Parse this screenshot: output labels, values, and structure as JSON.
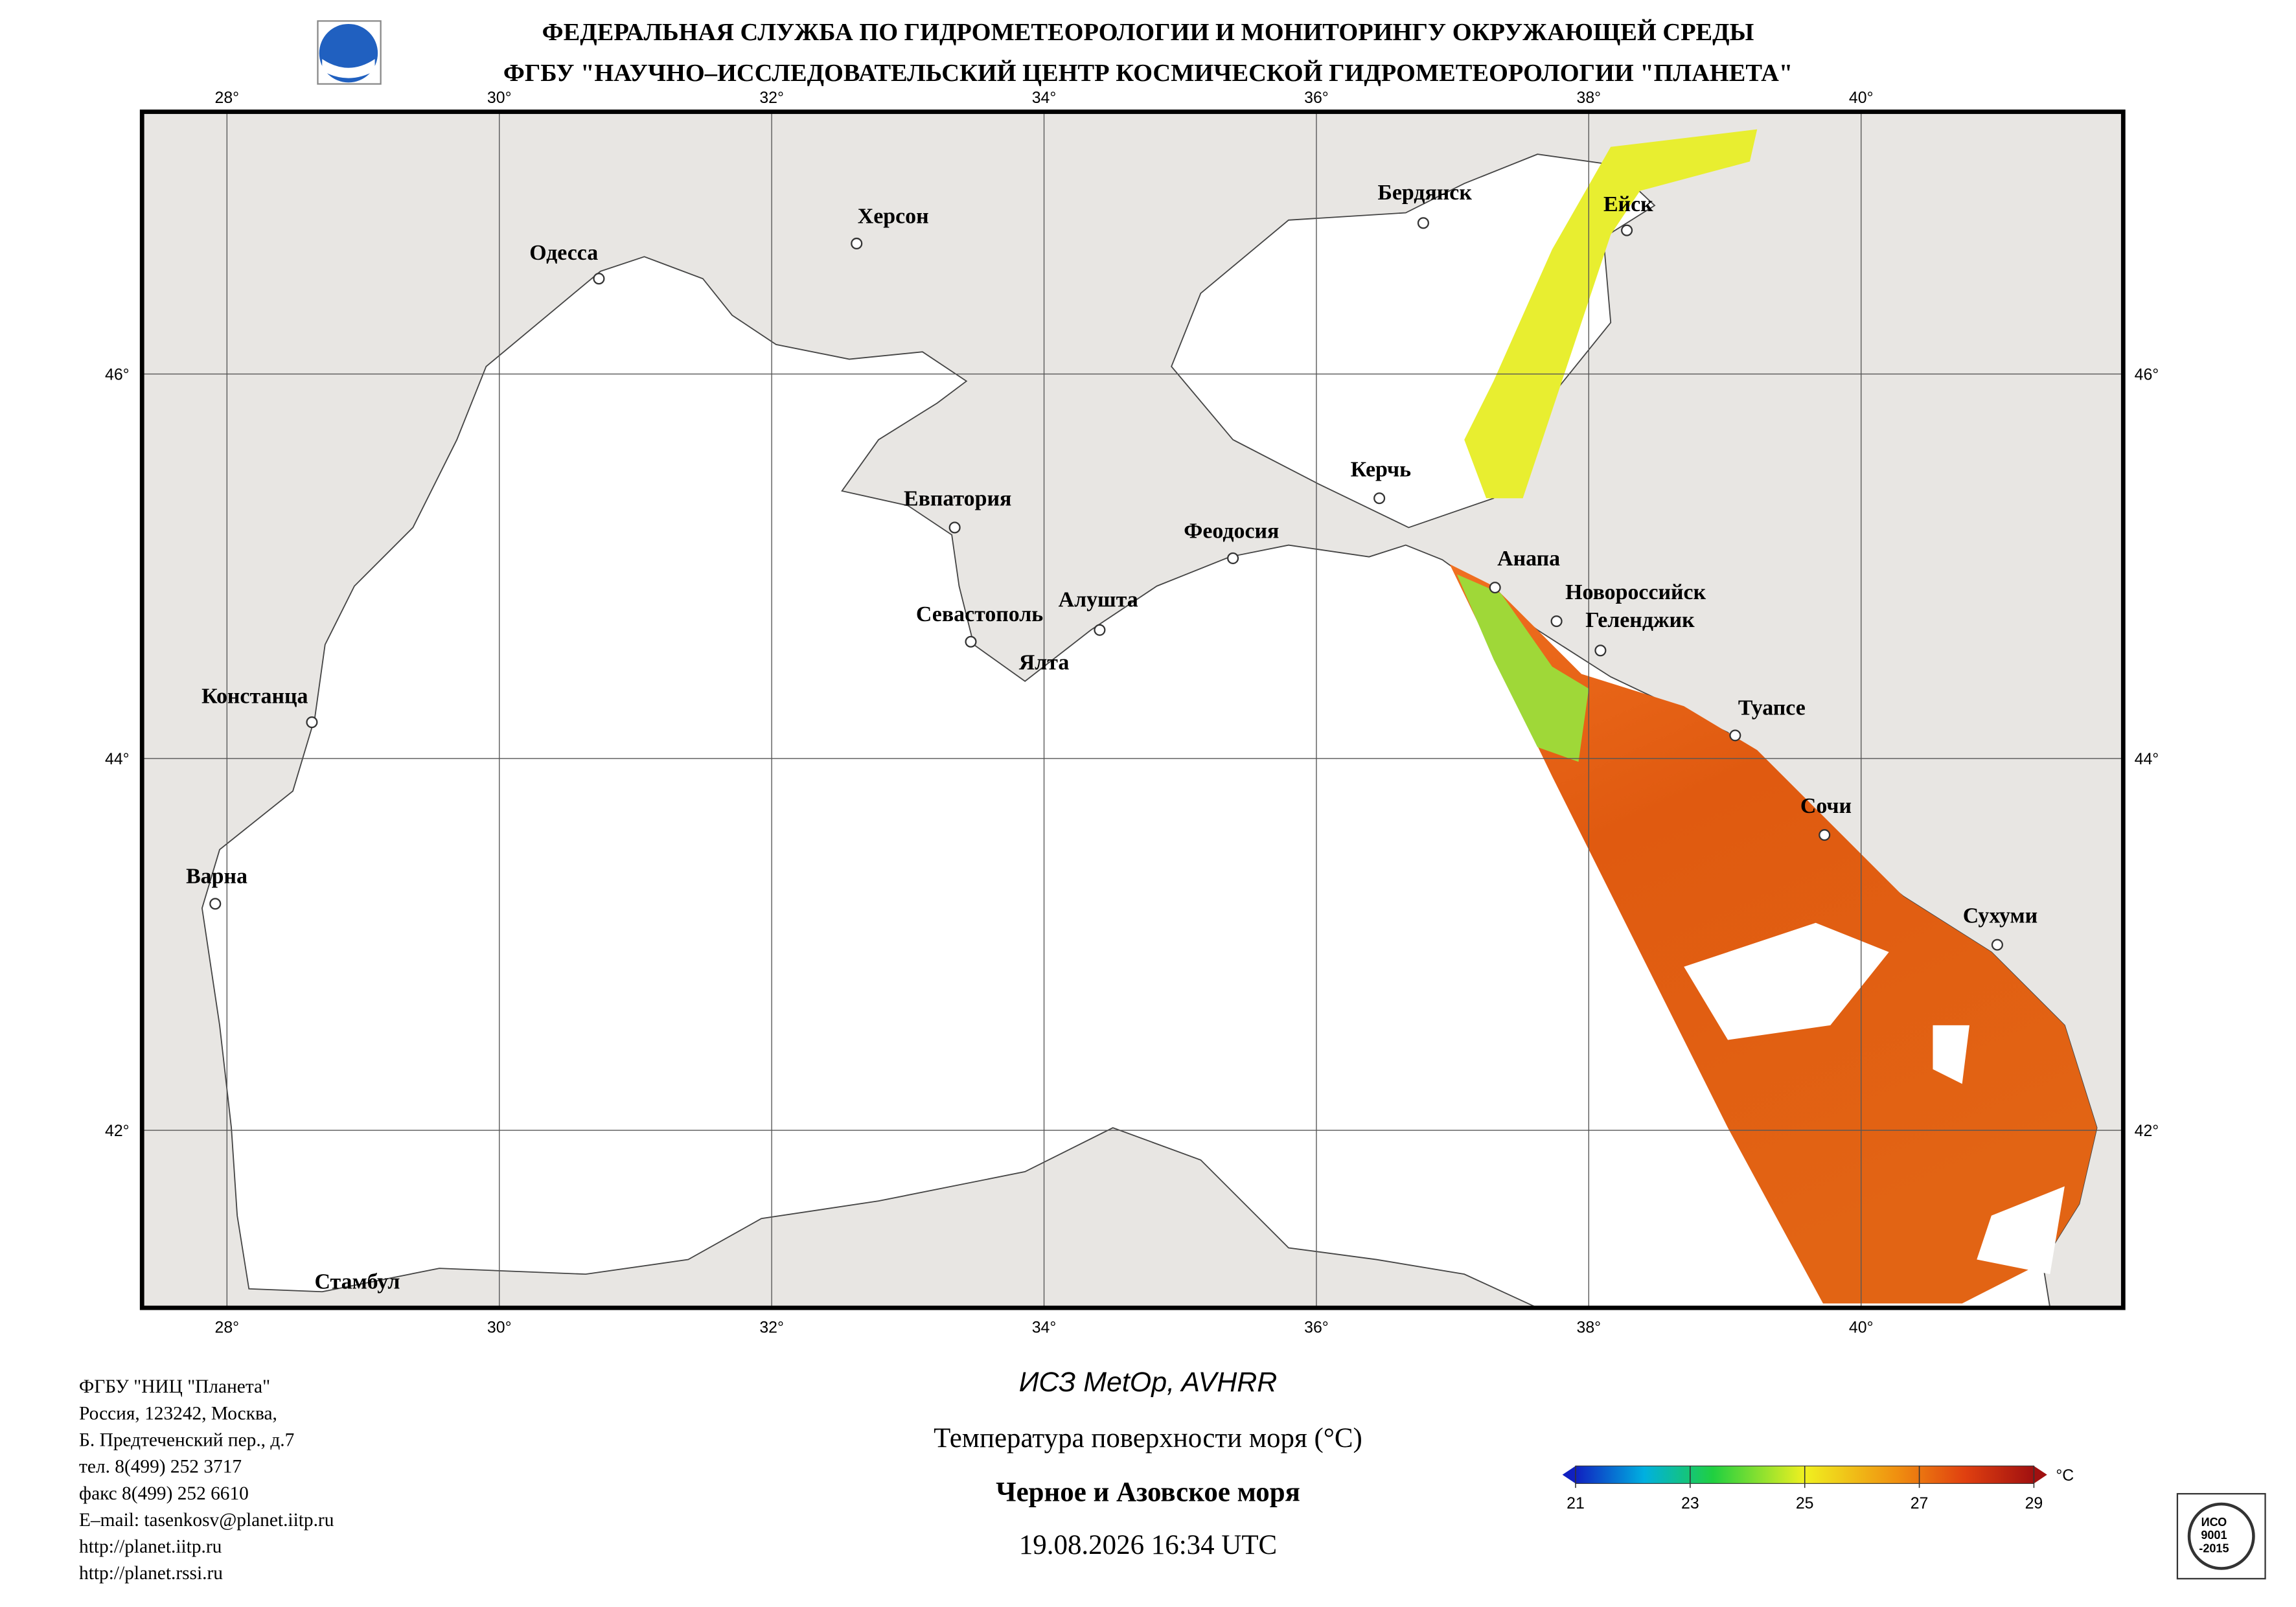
{
  "header": {
    "line1": "ФЕДЕРАЛЬНАЯ СЛУЖБА ПО ГИДРОМЕТЕОРОЛОГИИ И МОНИТОРИНГУ ОКРУЖАЮЩЕЙ СРЕДЫ",
    "line2": "ФГБУ \"НАУЧНО–ИССЛЕДОВАТЕЛЬСКИЙ ЦЕНТР КОСМИЧЕСКОЙ ГИДРОМЕТЕОРОЛОГИИ \"ПЛАНЕТА\""
  },
  "map": {
    "lon_ticks": [
      {
        "value": 28,
        "label": "28°"
      },
      {
        "value": 30,
        "label": "30°"
      },
      {
        "value": 32,
        "label": "32°"
      },
      {
        "value": 34,
        "label": "34°"
      },
      {
        "value": 36,
        "label": "36°"
      },
      {
        "value": 38,
        "label": "38°"
      },
      {
        "value": 40,
        "label": "40°"
      }
    ],
    "lat_ticks": [
      {
        "value": 42,
        "label": "42°"
      },
      {
        "value": 44,
        "label": "44°"
      },
      {
        "value": 46,
        "label": "46°"
      }
    ],
    "cities": [
      "Одесса",
      "Херсон",
      "Бердянск",
      "Ейск",
      "Евпатория",
      "Керчь",
      "Феодосия",
      "Анапа",
      "Новороссийск",
      "Геленджик",
      "Алушта",
      "Севастополь",
      "Ялта",
      "Туапсе",
      "Сочи",
      "Констанца",
      "Варна",
      "Сухуми",
      "Стамбул"
    ]
  },
  "footer": {
    "org_info": [
      "ФГБУ \"НИЦ \"Планета\"",
      "Россия, 123242, Москва,",
      "Б. Предтеченский пер., д.7",
      "тел. 8(499) 252 3717",
      "факс 8(499) 252 6610",
      "E–mail: tasenkosv@planet.iitp.ru",
      "http://planet.iitp.ru",
      "http://planet.rssi.ru"
    ],
    "satellite": "ИСЗ MetOp, AVHRR",
    "product": "Температура поверхности моря (°C)",
    "region": "Черное и Азовское моря",
    "datetime": "19.08.2026 16:34 UTC"
  },
  "colorbar": {
    "ticks": [
      21,
      23,
      25,
      27,
      29
    ],
    "unit": "°C"
  },
  "iso_badge": [
    "ИСО",
    "9001",
    "-2015"
  ]
}
